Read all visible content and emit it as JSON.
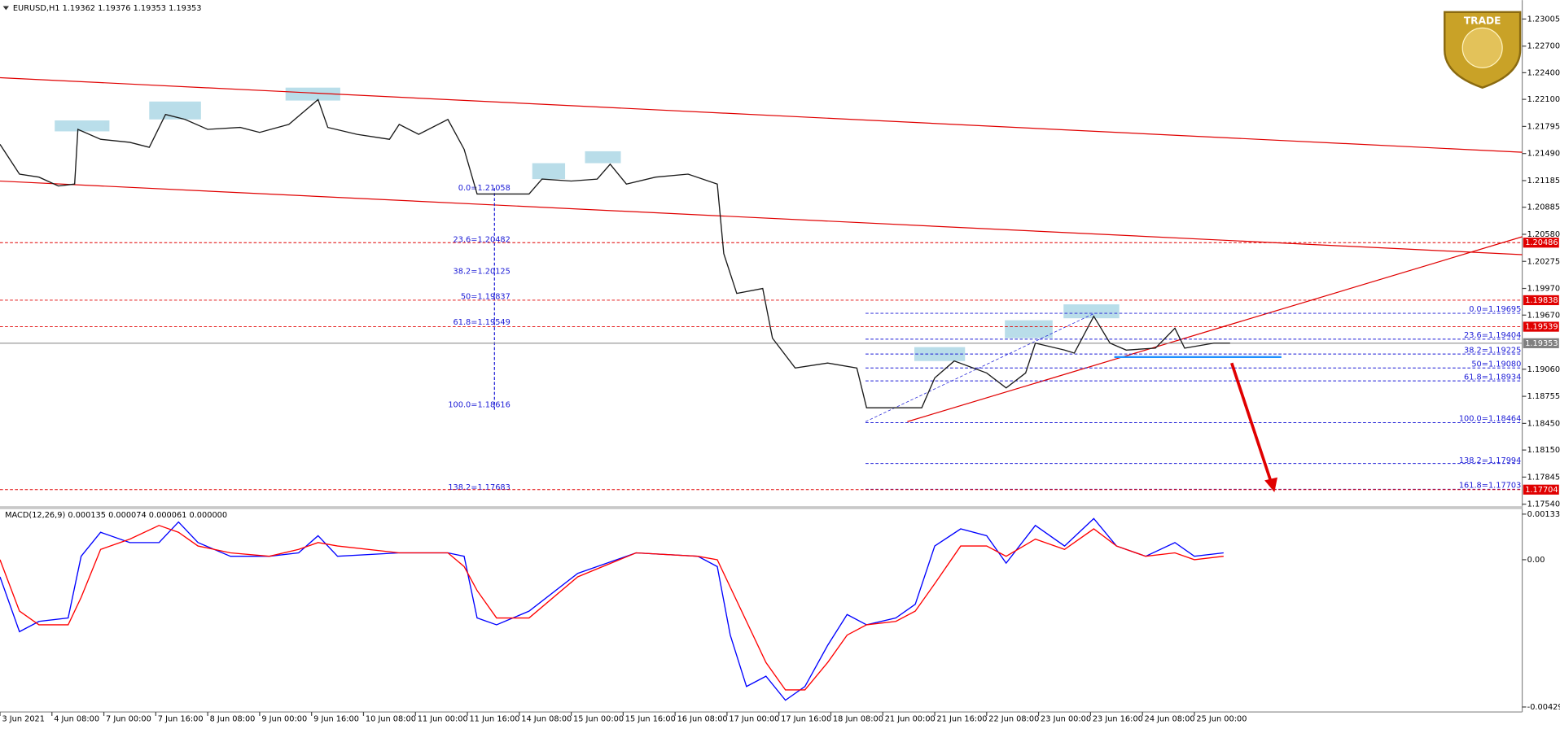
{
  "header": "EURUSD,H1  1.19362 1.19376 1.19353 1.19353",
  "logo": "TRADE",
  "chart_data": [
    {
      "type": "line",
      "color": "#1a1a1a",
      "x": [
        0,
        6,
        12,
        18,
        23,
        24,
        31,
        40,
        46,
        51,
        57,
        64,
        74,
        80,
        89,
        98,
        101,
        110,
        120,
        123,
        129,
        138,
        143,
        147,
        153,
        163,
        167,
        176,
        184,
        188,
        193,
        202,
        212,
        221,
        223,
        227,
        235,
        238,
        245,
        255,
        264,
        267,
        276,
        284,
        288,
        294,
        304,
        310,
        316,
        319,
        328,
        331,
        337,
        342,
        347,
        356,
        362,
        365,
        374,
        379
      ],
      "values": [
        1.21594,
        1.21258,
        1.21224,
        1.21124,
        1.21146,
        1.21762,
        1.2165,
        1.21616,
        1.2156,
        1.2193,
        1.21874,
        1.21762,
        1.21784,
        1.21728,
        1.21818,
        1.22098,
        1.21784,
        1.21706,
        1.2165,
        1.21818,
        1.21706,
        1.21874,
        1.21538,
        1.21034,
        1.21034,
        1.21034,
        1.21202,
        1.2118,
        1.21202,
        1.2137,
        1.21146,
        1.21224,
        1.21258,
        1.21146,
        1.20362,
        1.19914,
        1.1997,
        1.1941,
        1.19074,
        1.1913,
        1.19074,
        1.18626,
        1.18626,
        1.18626,
        1.18962,
        1.19153,
        1.19018,
        1.1885,
        1.19018,
        1.19354,
        1.19276,
        1.19242,
        1.19657,
        1.19354,
        1.19276,
        1.19298,
        1.19522,
        1.19298,
        1.19354,
        1.19354
      ],
      "xlim": [
        0,
        469
      ],
      "xticks": [
        {
          "value": 0,
          "label": "3 Jun 2021"
        },
        {
          "value": 16,
          "label": "4 Jun 08:00"
        },
        {
          "value": 32,
          "label": "7 Jun 00:00"
        },
        {
          "value": 48,
          "label": "7 Jun 16:00"
        },
        {
          "value": 64,
          "label": "8 Jun 08:00"
        },
        {
          "value": 80,
          "label": "9 Jun 00:00"
        },
        {
          "value": 96,
          "label": "9 Jun 16:00"
        },
        {
          "value": 112,
          "label": "10 Jun 08:00"
        },
        {
          "value": 128,
          "label": "11 Jun 00:00"
        },
        {
          "value": 144,
          "label": "11 Jun 16:00"
        },
        {
          "value": 160,
          "label": "14 Jun 08:00"
        },
        {
          "value": 176,
          "label": "15 Jun 00:00"
        },
        {
          "value": 192,
          "label": "15 Jun 16:00"
        },
        {
          "value": 208,
          "label": "16 Jun 08:00"
        },
        {
          "value": 224,
          "label": "17 Jun 00:00"
        },
        {
          "value": 240,
          "label": "17 Jun 16:00"
        },
        {
          "value": 256,
          "label": "18 Jun 08:00"
        },
        {
          "value": 272,
          "label": "21 Jun 00:00"
        },
        {
          "value": 288,
          "label": "21 Jun 16:00"
        },
        {
          "value": 304,
          "label": "22 Jun 08:00"
        },
        {
          "value": 320,
          "label": "23 Jun 00:00"
        },
        {
          "value": 336,
          "label": "23 Jun 16:00"
        },
        {
          "value": 352,
          "label": "24 Jun 08:00"
        },
        {
          "value": 368,
          "label": "25 Jun 00:00"
        }
      ],
      "ylim": [
        1.1754,
        1.23005
      ],
      "yticks": [
        1.23005,
        {
          "value": 1.227,
          "label": "1.22700"
        },
        {
          "value": 1.224,
          "label": "1.22400"
        },
        {
          "value": 1.221,
          "label": "1.22100"
        },
        1.21795,
        {
          "value": 1.2149,
          "label": "1.21490"
        },
        1.21185,
        1.20885,
        {
          "value": 1.2058,
          "label": "1.20580"
        },
        1.20275,
        {
          "value": 1.1997,
          "label": "1.19970"
        },
        {
          "value": 1.1967,
          "label": "1.19670"
        },
        {
          "value": 1.1906,
          "label": "1.19060"
        },
        1.18755,
        {
          "value": 1.1845,
          "label": "1.18450"
        },
        {
          "value": 1.1815,
          "label": "1.18150"
        },
        1.17845,
        {
          "value": 1.1754,
          "label": "1.17540"
        }
      ],
      "levels": [
        {
          "value": 1.20486,
          "color": "#e00000"
        },
        {
          "value": 1.19838,
          "color": "#e00000"
        },
        {
          "value": 1.19539,
          "color": "#e00000"
        },
        {
          "value": 1.19353,
          "color": "#808080"
        },
        {
          "value": 1.17704,
          "color": "#e00000"
        }
      ],
      "fib_left": [
        "0.0=1.21058",
        "23.6=1.20482",
        "38.2=1.20125",
        "50=1.19837",
        "61.8=1.19549",
        "100.0=1.18616",
        "138.2=1.17683"
      ],
      "fib_right": [
        "0.0=1.19695",
        "23.6=1.19404",
        "38.2=1.19225",
        "50=1.19080",
        "61.8=1.18934",
        "100.0=1.18464",
        "138.2=1.17994",
        "161.8=1.17703"
      ]
    },
    {
      "type": "line",
      "title": "MACD(12,26,9) 0.000135 0.000074 0.000061 0.000000",
      "x": [
        0,
        6,
        12,
        21,
        25,
        31,
        40,
        49,
        55,
        61,
        71,
        83,
        92,
        98,
        104,
        123,
        138,
        143,
        147,
        153,
        163,
        178,
        196,
        215,
        221,
        225,
        230,
        236,
        242,
        248,
        255,
        261,
        267,
        276,
        282,
        288,
        296,
        304,
        310,
        319,
        328,
        337,
        344,
        353,
        362,
        368,
        377
      ],
      "series": [
        {
          "color": "#0000ff",
          "values": [
            -0.0005,
            -0.0021,
            -0.0018,
            -0.0017,
            0.0001,
            0.0008,
            0.0005,
            0.0005,
            0.0011,
            0.0005,
            0.0001,
            0.0001,
            0.0002,
            0.0007,
            0.0001,
            0.0002,
            0.0002,
            0.0001,
            -0.0017,
            -0.0019,
            -0.0015,
            -0.0004,
            0.0002,
            0.0001,
            -0.0002,
            -0.0022,
            -0.0037,
            -0.0034,
            -0.0041,
            -0.0037,
            -0.0025,
            -0.0016,
            -0.0019,
            -0.0017,
            -0.0013,
            0.0004,
            0.0009,
            0.0007,
            -0.0001,
            0.001,
            0.0004,
            0.0012,
            0.0004,
            0.0001,
            0.0005,
            0.0001,
            0.0002
          ]
        },
        {
          "color": "#ff0000",
          "values": [
            0,
            -0.0015,
            -0.0019,
            -0.0019,
            -0.0011,
            0.0003,
            0.0006,
            0.001,
            0.0008,
            0.0004,
            0.0002,
            0.0001,
            0.0003,
            0.0005,
            0.0004,
            0.0002,
            0.0002,
            -0.0002,
            -0.0009,
            -0.0017,
            -0.0017,
            -0.0005,
            0.0002,
            0.0001,
            0,
            -0.0008,
            -0.0018,
            -0.003,
            -0.0038,
            -0.0038,
            -0.003,
            -0.0022,
            -0.0019,
            -0.0018,
            -0.0015,
            -0.0007,
            0.0004,
            0.0004,
            0.0001,
            0.0006,
            0.0003,
            0.0009,
            0.0004,
            0.0001,
            0.0002,
            0,
            0.0001
          ]
        }
      ],
      "xlim": [
        0,
        469
      ],
      "ylim": [
        -0.004298,
        0.00133
      ],
      "yticks": [
        0.00133,
        {
          "value": 0,
          "label": "0.00"
        },
        -0.004298
      ]
    }
  ]
}
